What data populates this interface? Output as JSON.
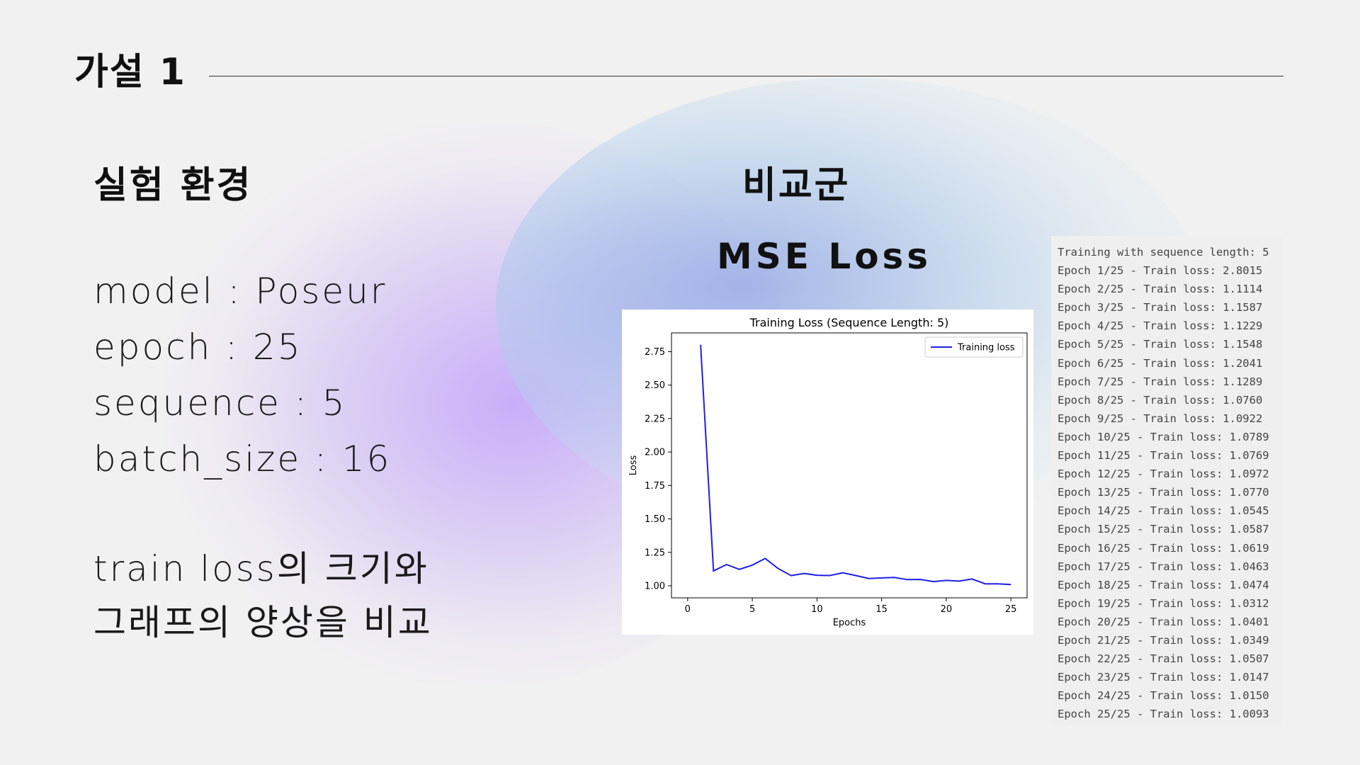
{
  "title": "가설 1",
  "left": {
    "heading": "실험 환경",
    "params": [
      "model : Poseur",
      "epoch : 25",
      "sequence : 5",
      "batch_size : 16"
    ],
    "note": [
      "train loss의 크기와",
      "그래프의 양상을 비교"
    ]
  },
  "right": {
    "heading": "비교군",
    "subheading": "MSE Loss"
  },
  "chart_data": {
    "type": "line",
    "title": "Training Loss (Sequence Length: 5)",
    "xlabel": "Epochs",
    "ylabel": "Loss",
    "xlim": [
      0,
      25
    ],
    "ylim": [
      1.0,
      2.8
    ],
    "xticks": [
      0,
      5,
      10,
      15,
      20,
      25
    ],
    "yticks": [
      1.0,
      1.25,
      1.5,
      1.75,
      2.0,
      2.25,
      2.5,
      2.75
    ],
    "legend_position": "top-right",
    "grid": false,
    "series": [
      {
        "name": "Training loss",
        "color": "#1f1fe6",
        "x": [
          1,
          2,
          3,
          4,
          5,
          6,
          7,
          8,
          9,
          10,
          11,
          12,
          13,
          14,
          15,
          16,
          17,
          18,
          19,
          20,
          21,
          22,
          23,
          24,
          25
        ],
        "y": [
          2.8015,
          1.1114,
          1.1587,
          1.1229,
          1.1548,
          1.2041,
          1.1289,
          1.076,
          1.0922,
          1.0789,
          1.0769,
          1.0972,
          1.077,
          1.0545,
          1.0587,
          1.0619,
          1.0463,
          1.0474,
          1.0312,
          1.0401,
          1.0349,
          1.0507,
          1.0147,
          1.015,
          1.0093
        ]
      }
    ]
  },
  "log_lines": [
    "Training with sequence length: 5",
    "Epoch 1/25 - Train loss: 2.8015",
    "Epoch 2/25 - Train loss: 1.1114",
    "Epoch 3/25 - Train loss: 1.1587",
    "Epoch 4/25 - Train loss: 1.1229",
    "Epoch 5/25 - Train loss: 1.1548",
    "Epoch 6/25 - Train loss: 1.2041",
    "Epoch 7/25 - Train loss: 1.1289",
    "Epoch 8/25 - Train loss: 1.0760",
    "Epoch 9/25 - Train loss: 1.0922",
    "Epoch 10/25 - Train loss: 1.0789",
    "Epoch 11/25 - Train loss: 1.0769",
    "Epoch 12/25 - Train loss: 1.0972",
    "Epoch 13/25 - Train loss: 1.0770",
    "Epoch 14/25 - Train loss: 1.0545",
    "Epoch 15/25 - Train loss: 1.0587",
    "Epoch 16/25 - Train loss: 1.0619",
    "Epoch 17/25 - Train loss: 1.0463",
    "Epoch 18/25 - Train loss: 1.0474",
    "Epoch 19/25 - Train loss: 1.0312",
    "Epoch 20/25 - Train loss: 1.0401",
    "Epoch 21/25 - Train loss: 1.0349",
    "Epoch 22/25 - Train loss: 1.0507",
    "Epoch 23/25 - Train loss: 1.0147",
    "Epoch 24/25 - Train loss: 1.0150",
    "Epoch 25/25 - Train loss: 1.0093"
  ]
}
